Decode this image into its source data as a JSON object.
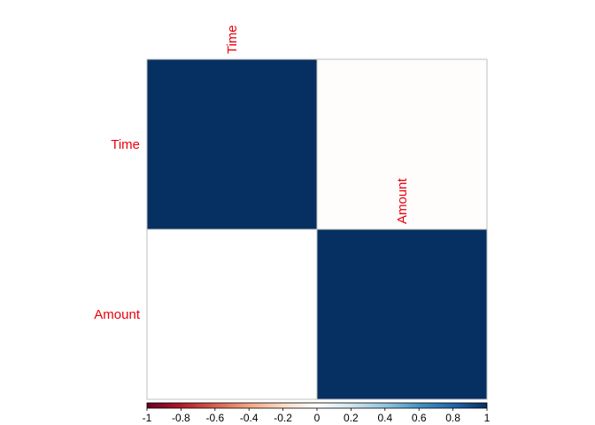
{
  "chart_data": {
    "type": "heatmap",
    "subtype": "correlation-matrix-upper",
    "variables": [
      "Time",
      "Amount"
    ],
    "matrix": [
      [
        1,
        -0.01
      ],
      [
        -0.01,
        1
      ]
    ],
    "shown_cells": "upper-triangle-with-diagonal",
    "label_color": "#e8000b",
    "colorbar": {
      "range": [
        -1,
        1
      ],
      "ticks": [
        -1,
        -0.8,
        -0.6,
        -0.4,
        -0.2,
        0,
        0.2,
        0.4,
        0.6,
        0.8,
        1
      ],
      "tick_labels": [
        "-1",
        "-0.8",
        "-0.6",
        "-0.4",
        "-0.2",
        "0",
        "0.2",
        "0.4",
        "0.6",
        "0.8",
        "1"
      ],
      "placement": "bottom",
      "colors": [
        "#67001f",
        "#b2182b",
        "#d6604d",
        "#f4a582",
        "#fddbc7",
        "#ffffff",
        "#d1e5f0",
        "#92c5de",
        "#4393c3",
        "#2166ac",
        "#053061"
      ]
    },
    "grid": true
  }
}
